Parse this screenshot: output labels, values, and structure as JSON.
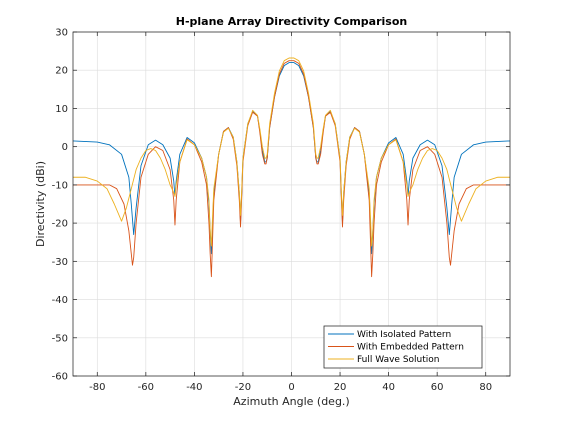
{
  "chart_data": {
    "type": "line",
    "title": "H-plane Array Directivity Comparison",
    "xlabel": "Azimuth Angle (deg.)",
    "ylabel": "Directivity (dBi)",
    "xlim": [
      -90,
      90
    ],
    "ylim": [
      -60,
      30
    ],
    "xticks": [
      -80,
      -60,
      -40,
      -20,
      0,
      20,
      40,
      60,
      80
    ],
    "yticks": [
      -60,
      -50,
      -40,
      -30,
      -20,
      -10,
      0,
      10,
      20,
      30
    ],
    "grid": true,
    "legend_position": "bottom-right",
    "series": [
      {
        "name": "With Isolated Pattern",
        "color": "#0072BD",
        "x": [
          -90,
          -80,
          -75,
          -70,
          -67,
          -66,
          -65,
          -64,
          -62,
          -59,
          -56,
          -53,
          -50,
          -48.5,
          -48,
          -47.5,
          -46,
          -43,
          -40,
          -37,
          -35,
          -34,
          -33.5,
          -33,
          -32.5,
          -32,
          -30,
          -28,
          -26,
          -24,
          -22.5,
          -21.5,
          -21,
          -20.5,
          -20,
          -18,
          -16,
          -14,
          -13,
          -12,
          -11,
          -10.5,
          -10,
          -9,
          -7,
          -5,
          -3,
          -1,
          0,
          1,
          3,
          5,
          7,
          9,
          10,
          10.5,
          11,
          12,
          13,
          14,
          16,
          18,
          20,
          20.5,
          21,
          21.5,
          22.5,
          24,
          26,
          28,
          30,
          32,
          32.5,
          33,
          33.5,
          34,
          35,
          37,
          40,
          43,
          46,
          47.5,
          48,
          48.5,
          50,
          53,
          56,
          59,
          62,
          64,
          65,
          66,
          67,
          70,
          75,
          80,
          90
        ],
        "y": [
          1.5,
          1.2,
          0.5,
          -2,
          -8,
          -15,
          -23,
          -16,
          -5,
          0.5,
          1.7,
          0.5,
          -3,
          -9,
          -13,
          -9,
          -2,
          2.4,
          1,
          -3,
          -8,
          -15,
          -22,
          -28,
          -20,
          -12,
          -2,
          4,
          5,
          2.5,
          -4,
          -12,
          -20,
          -12,
          -3,
          6,
          9.2,
          8,
          4,
          -1,
          -4,
          -4,
          -3,
          5,
          13,
          18.5,
          21.2,
          22,
          22,
          22,
          21.2,
          18.5,
          13,
          5,
          -3,
          -4,
          -4,
          -1,
          4,
          8,
          9.2,
          6,
          -3,
          -12,
          -20,
          -12,
          -4,
          2.5,
          5,
          4,
          -2,
          -12,
          -20,
          -28,
          -22,
          -15,
          -8,
          -3,
          1,
          2.4,
          -2,
          -9,
          -13,
          -9,
          -3,
          0.5,
          1.7,
          0.5,
          -5,
          -16,
          -23,
          -15,
          -8,
          -2,
          0.5,
          1.2,
          1.5
        ]
      },
      {
        "name": "With Embedded Pattern",
        "color": "#D95319",
        "x": [
          -90,
          -80,
          -75,
          -72,
          -69,
          -67,
          -66,
          -65.5,
          -65,
          -64,
          -62,
          -59,
          -56,
          -53,
          -50,
          -48.5,
          -48,
          -47.5,
          -46,
          -43,
          -40,
          -37,
          -35,
          -34,
          -33.5,
          -33,
          -32.5,
          -32,
          -30,
          -28,
          -26,
          -24,
          -22.5,
          -21.5,
          -21,
          -20.5,
          -20,
          -18,
          -16,
          -14,
          -13,
          -12,
          -11,
          -10.5,
          -10,
          -9,
          -7,
          -5,
          -3,
          -1,
          0,
          1,
          3,
          5,
          7,
          9,
          10,
          10.5,
          11,
          12,
          13,
          14,
          16,
          18,
          20,
          20.5,
          21,
          21.5,
          22.5,
          24,
          26,
          28,
          30,
          32,
          32.5,
          33,
          33.5,
          34,
          35,
          37,
          40,
          43,
          46,
          47.5,
          48,
          48.5,
          50,
          53,
          56,
          59,
          62,
          64,
          65,
          65.5,
          66,
          67,
          69,
          72,
          75,
          80,
          90
        ],
        "y": [
          -10,
          -10,
          -10,
          -11,
          -15,
          -22,
          -28,
          -31,
          -29,
          -20,
          -8,
          -2,
          0,
          -1,
          -6,
          -14,
          -20.5,
          -14,
          -4,
          2,
          0.5,
          -4,
          -10,
          -20,
          -28,
          -34,
          -24,
          -14,
          -2,
          4,
          5,
          2,
          -5,
          -14,
          -21,
          -13,
          -4,
          5.5,
          9,
          8,
          3.5,
          -2,
          -4.5,
          -4.5,
          -3,
          5,
          13,
          19,
          21.8,
          22.5,
          22.5,
          22.5,
          21.8,
          19,
          13,
          5,
          -3,
          -4.5,
          -4.5,
          -2,
          3.5,
          8,
          9,
          5.5,
          -4,
          -13,
          -21,
          -14,
          -5,
          2,
          5,
          4,
          -2,
          -14,
          -24,
          -34,
          -28,
          -20,
          -10,
          -4,
          0.5,
          2,
          -4,
          -14,
          -20.5,
          -14,
          -6,
          -1,
          0,
          -2,
          -8,
          -20,
          -29,
          -31,
          -28,
          -22,
          -15,
          -11,
          -10,
          -10,
          -10
        ]
      },
      {
        "name": "Full Wave Solution",
        "color": "#EDB120",
        "x": [
          -90,
          -85,
          -80,
          -76,
          -73,
          -71,
          -70,
          -68,
          -66,
          -64,
          -62,
          -60,
          -58,
          -56,
          -54,
          -52,
          -50,
          -48.5,
          -48,
          -47.5,
          -46,
          -43,
          -40,
          -37,
          -35,
          -34,
          -33.5,
          -33,
          -32.5,
          -32,
          -30,
          -28,
          -26,
          -24,
          -22.5,
          -21.5,
          -21,
          -20.5,
          -20,
          -18,
          -16,
          -14,
          -13,
          -12,
          -11,
          -10.5,
          -10,
          -9,
          -7,
          -5,
          -3,
          -1,
          0,
          1,
          3,
          5,
          7,
          9,
          10,
          10.5,
          11,
          12,
          13,
          14,
          16,
          18,
          20,
          20.5,
          21,
          21.5,
          22.5,
          24,
          26,
          28,
          30,
          32,
          32.5,
          33,
          33.5,
          34,
          35,
          37,
          40,
          43,
          46,
          47.5,
          48,
          48.5,
          50,
          52,
          54,
          56,
          58,
          60,
          62,
          64,
          66,
          68,
          70,
          71,
          73,
          76,
          80,
          85,
          90
        ],
        "y": [
          -8,
          -8,
          -9,
          -11,
          -15,
          -18,
          -19.5,
          -16,
          -11,
          -6,
          -3,
          -1,
          -0.5,
          -1,
          -3,
          -6,
          -10,
          -12,
          -13,
          -10,
          -4,
          1.8,
          0.5,
          -3,
          -8,
          -14,
          -22,
          -26,
          -18,
          -11,
          -2,
          3.8,
          4.8,
          2.5,
          -4,
          -12,
          -18,
          -11,
          -3,
          6,
          9.5,
          8.2,
          4.5,
          0,
          -3,
          -3,
          -2,
          6,
          14,
          19.8,
          22.5,
          23.2,
          23.2,
          23.2,
          22.5,
          19.8,
          14,
          6,
          -2,
          -3,
          -3,
          0,
          4.5,
          8.2,
          9.5,
          6,
          -3,
          -11,
          -18,
          -12,
          -4,
          2.5,
          4.8,
          3.8,
          -2,
          -11,
          -18,
          -26,
          -22,
          -14,
          -8,
          -3,
          0.5,
          1.8,
          -4,
          -10,
          -13,
          -12,
          -10,
          -6,
          -3,
          -1,
          -0.5,
          -1,
          -3,
          -6,
          -11,
          -16,
          -19.5,
          -18,
          -15,
          -11,
          -9,
          -8,
          -8
        ]
      }
    ]
  }
}
